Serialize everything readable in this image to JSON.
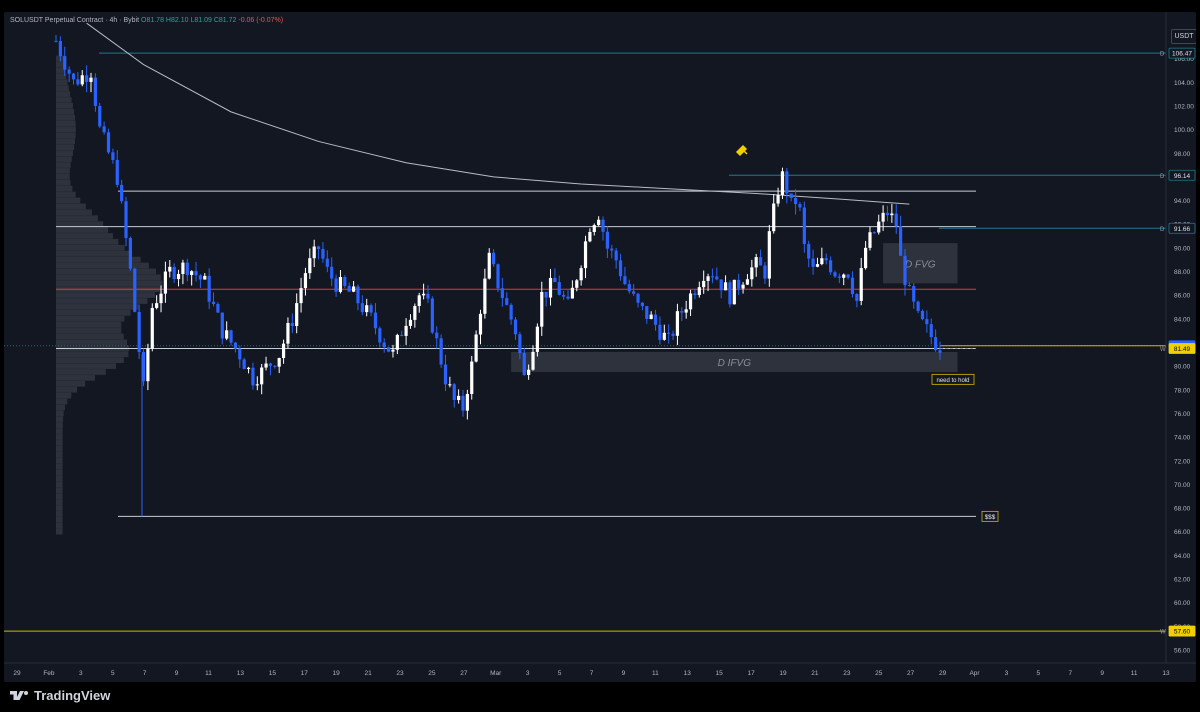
{
  "header": {
    "symbol": "SOLUSDT Perpetual Contract · 4h · Bybit",
    "open": "O81.78",
    "high": "H82.10",
    "low": "L81.09",
    "close": "C81.72",
    "change": "-0.06 (-0.07%)"
  },
  "currency": "USDT",
  "brand": "TradingView",
  "chart_data": {
    "type": "candlestick",
    "y_axis": {
      "range": [
        55,
        109
      ],
      "ticks": [
        56,
        58,
        60,
        62,
        64,
        66,
        68,
        70,
        72,
        74,
        76,
        78,
        80,
        82,
        84,
        86,
        88,
        90,
        92,
        94,
        96,
        98,
        100,
        102,
        104,
        106,
        108
      ]
    },
    "x_axis": {
      "range_start": "Jan 29",
      "range_end": "Apr 13",
      "ticks": [
        "29",
        "Feb",
        "3",
        "5",
        "7",
        "9",
        "11",
        "13",
        "15",
        "17",
        "19",
        "21",
        "23",
        "25",
        "27",
        "Mar",
        "3",
        "5",
        "7",
        "9",
        "11",
        "13",
        "15",
        "17",
        "19",
        "21",
        "23",
        "25",
        "27",
        "29",
        "Apr",
        "3",
        "5",
        "7",
        "9",
        "11",
        "13"
      ]
    },
    "price_path": [
      [
        0,
        107.5
      ],
      [
        4,
        104
      ],
      [
        8,
        105
      ],
      [
        10,
        100
      ],
      [
        14,
        96
      ],
      [
        17,
        88
      ],
      [
        20,
        78
      ],
      [
        22,
        85
      ],
      [
        26,
        88
      ],
      [
        30,
        88.5
      ],
      [
        34,
        87
      ],
      [
        38,
        83
      ],
      [
        42,
        81
      ],
      [
        45,
        79
      ],
      [
        47,
        79.5
      ],
      [
        51,
        81
      ],
      [
        54,
        84
      ],
      [
        57,
        88
      ],
      [
        60,
        90
      ],
      [
        62,
        88
      ],
      [
        64,
        87
      ],
      [
        68,
        86
      ],
      [
        72,
        84
      ],
      [
        75,
        82
      ],
      [
        77,
        81
      ],
      [
        80,
        84
      ],
      [
        83,
        86
      ],
      [
        85,
        85
      ],
      [
        87,
        82
      ],
      [
        89,
        79
      ],
      [
        91,
        77
      ],
      [
        93,
        76.5
      ],
      [
        95,
        80
      ],
      [
        97,
        85
      ],
      [
        99,
        89
      ],
      [
        101,
        87
      ],
      [
        103,
        85
      ],
      [
        105,
        83
      ],
      [
        107,
        79
      ],
      [
        109,
        82
      ],
      [
        111,
        86
      ],
      [
        114,
        87
      ],
      [
        117,
        85
      ],
      [
        120,
        89
      ],
      [
        122,
        92
      ],
      [
        124,
        93
      ],
      [
        126,
        90
      ],
      [
        128,
        89
      ],
      [
        130,
        87
      ],
      [
        133,
        85
      ],
      [
        136,
        84
      ],
      [
        138,
        83
      ],
      [
        140,
        82
      ],
      [
        142,
        84
      ],
      [
        145,
        86
      ],
      [
        148,
        88
      ],
      [
        150,
        88
      ],
      [
        152,
        87
      ],
      [
        154,
        86
      ],
      [
        156,
        87
      ],
      [
        158,
        88
      ],
      [
        160,
        88.5
      ],
      [
        162,
        88
      ],
      [
        163,
        91
      ],
      [
        164,
        93
      ],
      [
        165,
        95
      ],
      [
        166,
        96
      ],
      [
        167,
        95
      ],
      [
        168,
        93.5
      ],
      [
        169,
        94
      ],
      [
        170,
        93
      ],
      [
        171,
        90
      ],
      [
        173,
        88
      ],
      [
        176,
        89
      ],
      [
        178,
        88
      ],
      [
        181,
        88
      ],
      [
        183,
        85.5
      ],
      [
        185,
        90
      ],
      [
        188,
        92
      ],
      [
        190,
        93
      ],
      [
        192,
        92
      ],
      [
        193,
        89
      ],
      [
        195,
        86
      ],
      [
        197,
        84
      ],
      [
        199,
        83
      ],
      [
        200,
        82.5
      ],
      [
        201,
        82
      ],
      [
        202,
        81.72
      ]
    ],
    "overlays": {
      "moving_average": [
        [
          7,
          109
        ],
        [
          20,
          105.5
        ],
        [
          40,
          101.5
        ],
        [
          60,
          99
        ],
        [
          80,
          97.2
        ],
        [
          100,
          96
        ],
        [
          120,
          95.4
        ],
        [
          140,
          95
        ],
        [
          160,
          94.6
        ],
        [
          180,
          94.1
        ],
        [
          195,
          93.7
        ]
      ],
      "levels": [
        {
          "label": "D FVG",
          "type": "zone",
          "top": 90.4,
          "bottom": 87.0,
          "x_start": 189,
          "x_end": 206
        },
        {
          "label": "D IFVG",
          "type": "zone",
          "top": 81.2,
          "bottom": 79.5,
          "x_start": 104,
          "x_end": 206
        },
        {
          "label": "need to hold",
          "type": "note",
          "price": 78.8
        },
        {
          "label": "$$$",
          "type": "line",
          "price": 67.3,
          "x_start": 25,
          "x_end": 206
        },
        {
          "label": "W",
          "type": "line",
          "price": 81.49,
          "x_start": 25,
          "x_end": 206
        },
        {
          "label": "D",
          "type": "line",
          "price": 94.8,
          "x_start": 25,
          "x_end": 206
        },
        {
          "label": "D",
          "type": "line",
          "price": 91.8,
          "x_start": 13,
          "x_end": 206
        },
        {
          "label": "",
          "type": "line",
          "price": 86.5,
          "x_start": 13,
          "x_end": 206
        }
      ],
      "price_labels": [
        {
          "value": "106.47",
          "price": 106.47,
          "side": "D"
        },
        {
          "value": "96.14",
          "price": 96.14,
          "side": "D"
        },
        {
          "value": "91.66",
          "price": 91.66,
          "side": "D"
        },
        {
          "value": "81.72",
          "price": 81.72,
          "side": ""
        },
        {
          "value": "81.49",
          "price": 81.49,
          "side": "W"
        },
        {
          "value": "57.60",
          "price": 57.6,
          "side": "W"
        }
      ]
    }
  }
}
